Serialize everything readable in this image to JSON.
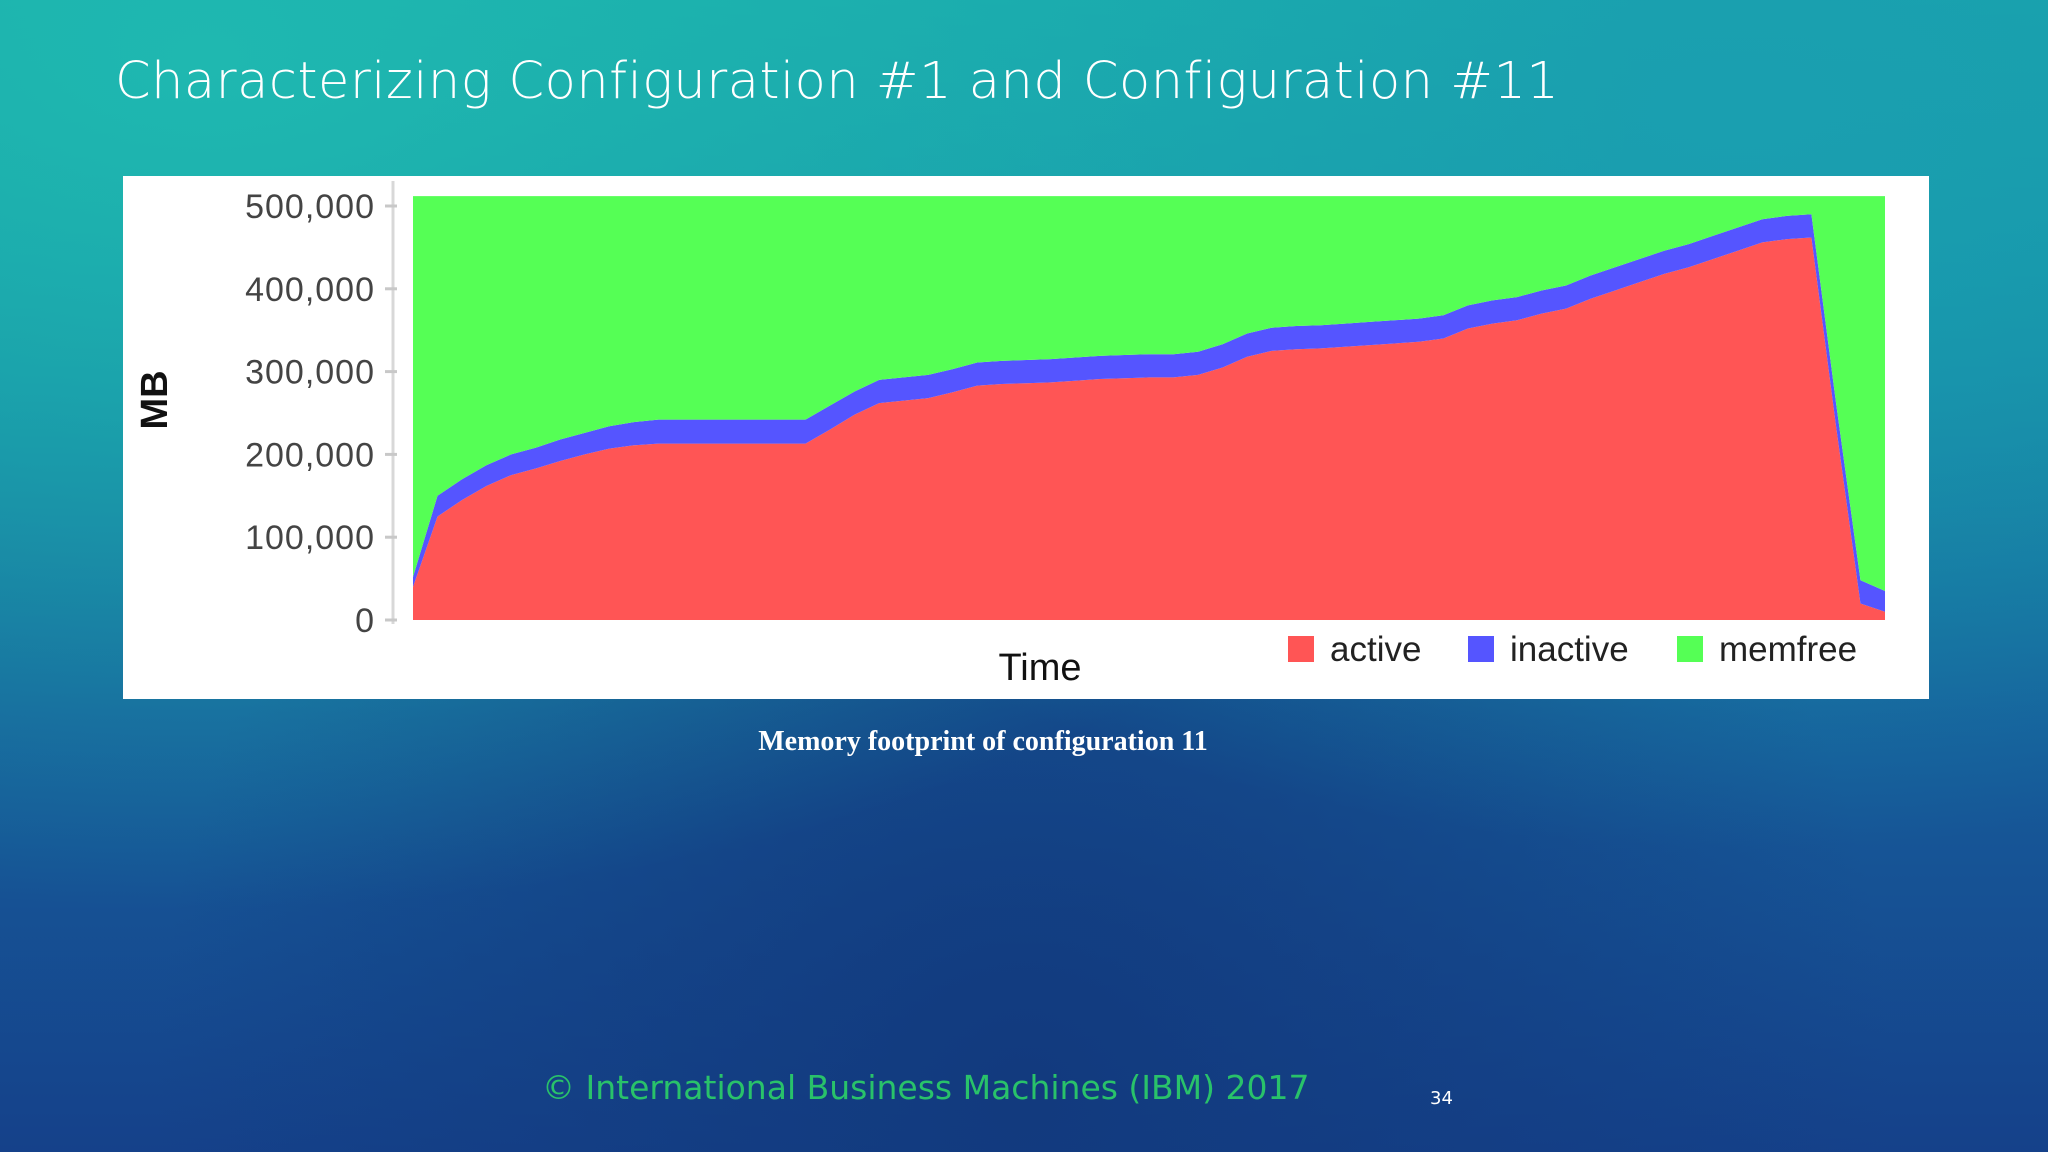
{
  "slide": {
    "title": "Characterizing Configuration #1 and Configuration #11",
    "caption": "Memory footprint of configuration 11",
    "footer": "© International Business Machines (IBM) 2017",
    "page_number": "34"
  },
  "chart_data": {
    "type": "area",
    "stacked": true,
    "title": "",
    "xlabel": "Time",
    "ylabel": "MB",
    "ylim": [
      0,
      500000
    ],
    "yticks": [
      0,
      100000,
      200000,
      300000,
      400000,
      500000
    ],
    "ytick_labels": [
      "0",
      "100,000",
      "200,000",
      "300,000",
      "400,000",
      "500,000"
    ],
    "grid": true,
    "legend_position": "bottom-right",
    "x": [
      0,
      1,
      2,
      3,
      4,
      5,
      6,
      7,
      8,
      9,
      10,
      11,
      12,
      13,
      14,
      15,
      16,
      17,
      18,
      19,
      20,
      21,
      22,
      23,
      24,
      25,
      26,
      27,
      28,
      29,
      30,
      31,
      32,
      33,
      34,
      35,
      36,
      37,
      38,
      39,
      40,
      41,
      42,
      43,
      44,
      45,
      46,
      47,
      48,
      49,
      50,
      51,
      52,
      53,
      54,
      55,
      56,
      57,
      58,
      59,
      60
    ],
    "series": [
      {
        "name": "active",
        "color": "#ff5555",
        "values": [
          40000,
          125000,
          145000,
          162000,
          175000,
          183000,
          192000,
          200000,
          207000,
          211000,
          213000,
          213000,
          213000,
          213000,
          213000,
          213000,
          213000,
          230000,
          248000,
          262000,
          265000,
          268000,
          275000,
          283000,
          285000,
          286000,
          287000,
          289000,
          291000,
          292000,
          293000,
          293000,
          296000,
          305000,
          318000,
          325000,
          327000,
          328000,
          330000,
          332000,
          334000,
          336000,
          340000,
          352000,
          358000,
          362000,
          370000,
          376000,
          388000,
          398000,
          408000,
          418000,
          426000,
          436000,
          446000,
          456000,
          460000,
          462000,
          235000,
          20000,
          10000
        ]
      },
      {
        "name": "inactive",
        "color": "#5555ff",
        "values": [
          12000,
          25000,
          25000,
          25000,
          25000,
          25000,
          26000,
          26000,
          27000,
          28000,
          29000,
          29000,
          29000,
          29000,
          29000,
          29000,
          29000,
          29000,
          28000,
          28000,
          28000,
          28000,
          28000,
          28000,
          28000,
          28000,
          28000,
          28000,
          28000,
          28000,
          28000,
          28000,
          28000,
          28000,
          28000,
          28000,
          28000,
          28000,
          28000,
          28000,
          28000,
          28000,
          28000,
          28000,
          28000,
          28000,
          28000,
          28000,
          28000,
          28000,
          28000,
          28000,
          28000,
          28000,
          28000,
          28000,
          28000,
          28000,
          28000,
          28000,
          25000
        ]
      },
      {
        "name": "memfree",
        "color": "#55ff55",
        "values": [
          460000,
          362000,
          342000,
          325000,
          312000,
          304000,
          294000,
          286000,
          278000,
          273000,
          270000,
          270000,
          270000,
          270000,
          270000,
          270000,
          270000,
          253000,
          236000,
          222000,
          219000,
          216000,
          209000,
          201000,
          199000,
          198000,
          197000,
          195000,
          193000,
          192000,
          191000,
          191000,
          188000,
          179000,
          166000,
          159000,
          157000,
          156000,
          154000,
          152000,
          150000,
          148000,
          144000,
          132000,
          126000,
          122000,
          114000,
          108000,
          96000,
          86000,
          76000,
          66000,
          58000,
          48000,
          38000,
          28000,
          24000,
          22000,
          249000,
          464000,
          477000
        ]
      }
    ]
  }
}
